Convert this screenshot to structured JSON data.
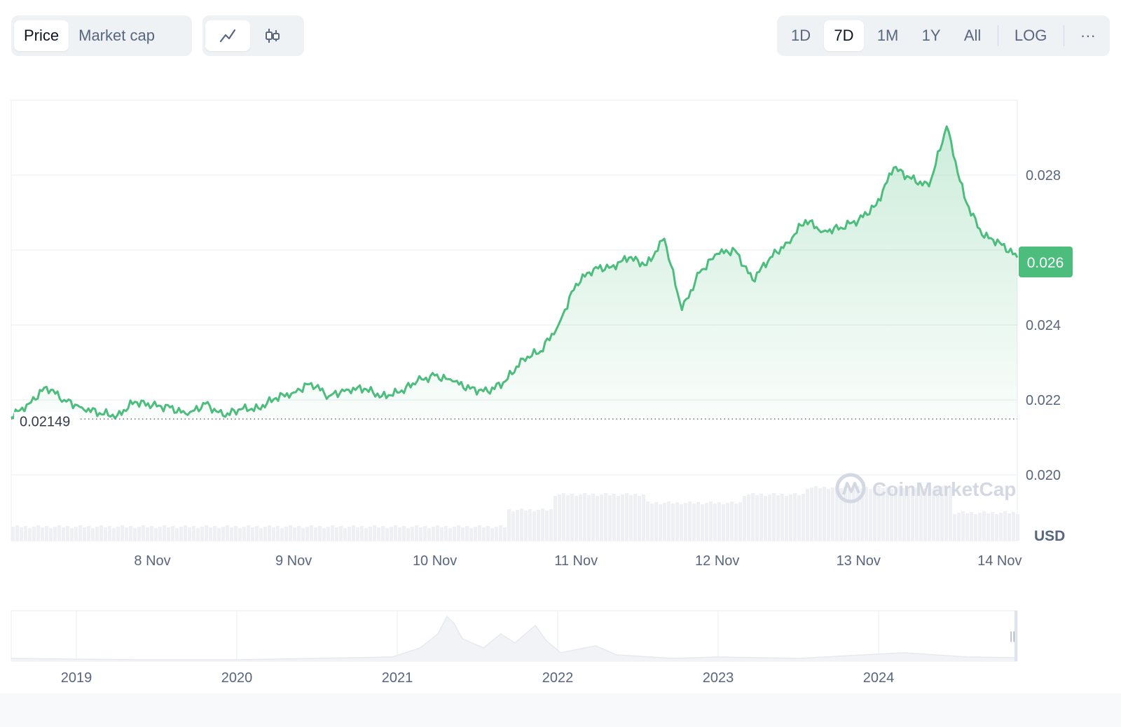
{
  "toolbar": {
    "type_tabs": [
      {
        "label": "Price",
        "active": true
      },
      {
        "label": "Market cap",
        "active": false
      }
    ],
    "view_icons": [
      {
        "icon": "line-chart-icon",
        "active": true
      },
      {
        "icon": "candlestick-icon",
        "active": false
      }
    ],
    "ranges": [
      {
        "label": "1D",
        "active": false
      },
      {
        "label": "7D",
        "active": true
      },
      {
        "label": "1M",
        "active": false
      },
      {
        "label": "1Y",
        "active": false
      },
      {
        "label": "All",
        "active": false
      }
    ],
    "log_label": "LOG",
    "more_label": "···"
  },
  "colors": {
    "line": "#4cbd7d",
    "fill_top": "#d5f0e0",
    "price_tag": "#4cbd7d",
    "volume": "#eef0f4",
    "grid": "#eff2f5",
    "text": "#58667e"
  },
  "chart_data": [
    {
      "type": "line",
      "title": "",
      "x": [
        "7 Nov 00:00",
        "7 Nov 03:00",
        "7 Nov 06:00",
        "7 Nov 09:00",
        "7 Nov 12:00",
        "7 Nov 15:00",
        "7 Nov 18:00",
        "7 Nov 21:00",
        "8 Nov 00:00",
        "8 Nov 03:00",
        "8 Nov 06:00",
        "8 Nov 09:00",
        "8 Nov 12:00",
        "8 Nov 15:00",
        "8 Nov 18:00",
        "8 Nov 21:00",
        "9 Nov 00:00",
        "9 Nov 03:00",
        "9 Nov 06:00",
        "9 Nov 09:00",
        "9 Nov 12:00",
        "9 Nov 15:00",
        "9 Nov 18:00",
        "9 Nov 21:00",
        "10 Nov 00:00",
        "10 Nov 03:00",
        "10 Nov 06:00",
        "10 Nov 09:00",
        "10 Nov 12:00",
        "10 Nov 15:00",
        "10 Nov 18:00",
        "10 Nov 21:00",
        "11 Nov 00:00",
        "11 Nov 03:00",
        "11 Nov 06:00",
        "11 Nov 09:00",
        "11 Nov 12:00",
        "11 Nov 15:00",
        "11 Nov 18:00",
        "11 Nov 21:00",
        "12 Nov 00:00",
        "12 Nov 03:00",
        "12 Nov 06:00",
        "12 Nov 09:00",
        "12 Nov 12:00",
        "12 Nov 15:00",
        "12 Nov 18:00",
        "12 Nov 21:00",
        "13 Nov 00:00",
        "13 Nov 03:00",
        "13 Nov 06:00",
        "13 Nov 09:00",
        "13 Nov 12:00",
        "13 Nov 15:00",
        "13 Nov 18:00",
        "13 Nov 21:00",
        "14 Nov 00:00",
        "14 Nov 01:30"
      ],
      "values": [
        0.02155,
        0.0219,
        0.02235,
        0.022,
        0.0218,
        0.02165,
        0.02158,
        0.02195,
        0.02185,
        0.0218,
        0.0216,
        0.0219,
        0.02158,
        0.02175,
        0.02178,
        0.02205,
        0.0222,
        0.02245,
        0.0221,
        0.02228,
        0.0223,
        0.0221,
        0.0222,
        0.0225,
        0.02265,
        0.0225,
        0.0223,
        0.02222,
        0.0225,
        0.0231,
        0.0233,
        0.024,
        0.0251,
        0.0255,
        0.02555,
        0.0258,
        0.0256,
        0.0263,
        0.0244,
        0.0254,
        0.0259,
        0.026,
        0.0252,
        0.0258,
        0.0262,
        0.0268,
        0.0265,
        0.0266,
        0.0268,
        0.0272,
        0.0282,
        0.0279,
        0.0277,
        0.0293,
        0.0274,
        0.0264,
        0.0262,
        0.0258
      ],
      "x_ticks": [
        "8 Nov",
        "9 Nov",
        "10 Nov",
        "11 Nov",
        "12 Nov",
        "13 Nov",
        "14 Nov"
      ],
      "y_ticks": [
        "0.028",
        "0.024",
        "0.022",
        "0.020"
      ],
      "ylim": [
        0.019,
        0.03
      ],
      "y_unit": "USD",
      "current_price": "0.026",
      "reference_value": 0.02149,
      "reference_label": "0.02149",
      "watermark": "CoinMarketCap",
      "grid": true
    },
    {
      "type": "area",
      "title": "",
      "x_ticks": [
        "2019",
        "2020",
        "2021",
        "2022",
        "2023",
        "2024"
      ]
    }
  ]
}
